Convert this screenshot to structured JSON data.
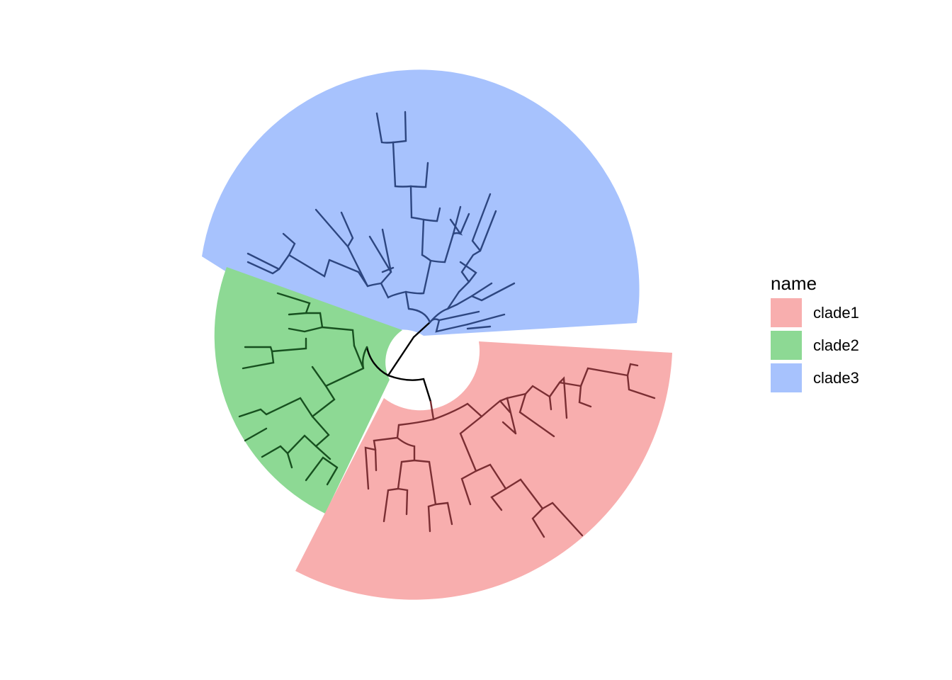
{
  "legend": {
    "title": "name",
    "items": [
      {
        "label": "clade1",
        "color": "#f8aeae"
      },
      {
        "label": "clade2",
        "color": "#8dd994"
      },
      {
        "label": "clade3",
        "color": "#a7c2fd"
      }
    ]
  },
  "clade_colors": {
    "clade1": {
      "fill": "#f8aeae",
      "branch": "#7a2e33"
    },
    "clade2": {
      "fill": "#8dd994",
      "branch": "#17501f"
    },
    "clade3": {
      "fill": "#a7c2fd",
      "branch": "#2d4680"
    },
    "root": "#000000"
  }
}
